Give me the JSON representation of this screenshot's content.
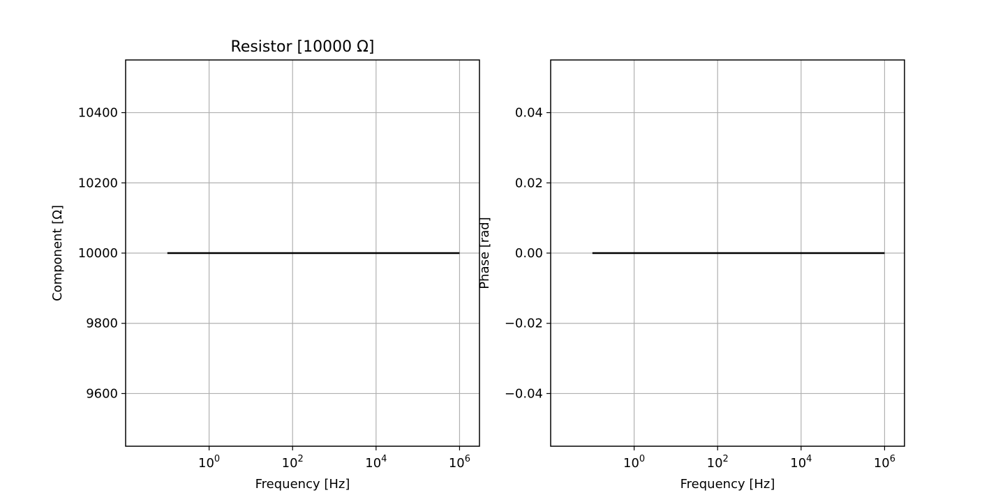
{
  "chart_data": [
    {
      "type": "line",
      "title": "Resistor [10000 Ω]",
      "xlabel": "Frequency [Hz]",
      "ylabel": "Component [Ω]",
      "xscale": "log",
      "xlim": [
        0.01,
        3000000
      ],
      "ylim": [
        9450,
        10550
      ],
      "x_ticks": [
        1,
        100,
        10000,
        1000000
      ],
      "x_tick_labels": [
        {
          "base": "10",
          "exp": "0"
        },
        {
          "base": "10",
          "exp": "2"
        },
        {
          "base": "10",
          "exp": "4"
        },
        {
          "base": "10",
          "exp": "6"
        }
      ],
      "y_ticks": [
        9600,
        9800,
        10000,
        10200,
        10400
      ],
      "y_tick_labels": [
        "9600",
        "9800",
        "10000",
        "10200",
        "10400"
      ],
      "grid": true,
      "series": [
        {
          "color": "#000000",
          "x": [
            0.1,
            1000000
          ],
          "y": [
            10000,
            10000
          ]
        }
      ]
    },
    {
      "type": "line",
      "title": "",
      "xlabel": "Frequency [Hz]",
      "ylabel": "Phase [rad]",
      "xscale": "log",
      "xlim": [
        0.01,
        3000000
      ],
      "ylim": [
        -0.055,
        0.055
      ],
      "x_ticks": [
        1,
        100,
        10000,
        1000000
      ],
      "x_tick_labels": [
        {
          "base": "10",
          "exp": "0"
        },
        {
          "base": "10",
          "exp": "2"
        },
        {
          "base": "10",
          "exp": "4"
        },
        {
          "base": "10",
          "exp": "6"
        }
      ],
      "y_ticks": [
        -0.04,
        -0.02,
        0.0,
        0.02,
        0.04
      ],
      "y_tick_labels": [
        "−0.04",
        "−0.02",
        "0.00",
        "0.02",
        "0.04"
      ],
      "grid": true,
      "series": [
        {
          "color": "#000000",
          "x": [
            0.1,
            1000000
          ],
          "y": [
            0,
            0
          ]
        }
      ]
    }
  ]
}
